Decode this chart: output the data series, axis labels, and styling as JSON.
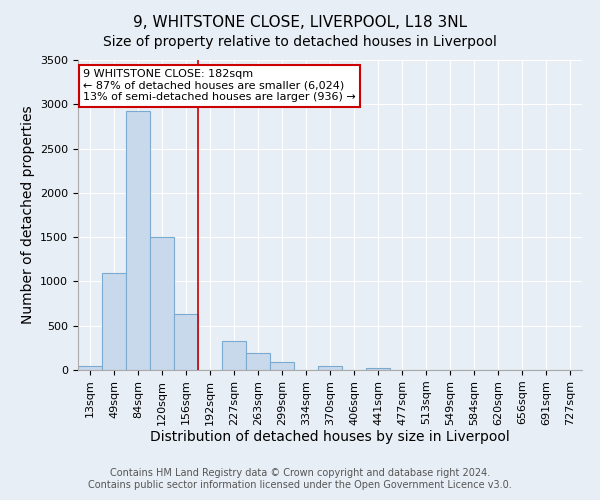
{
  "title": "9, WHITSTONE CLOSE, LIVERPOOL, L18 3NL",
  "subtitle": "Size of property relative to detached houses in Liverpool",
  "xlabel": "Distribution of detached houses by size in Liverpool",
  "ylabel": "Number of detached properties",
  "bar_labels": [
    "13sqm",
    "49sqm",
    "84sqm",
    "120sqm",
    "156sqm",
    "192sqm",
    "227sqm",
    "263sqm",
    "299sqm",
    "334sqm",
    "370sqm",
    "406sqm",
    "441sqm",
    "477sqm",
    "513sqm",
    "549sqm",
    "584sqm",
    "620sqm",
    "656sqm",
    "691sqm",
    "727sqm"
  ],
  "bar_values": [
    40,
    1100,
    2920,
    1500,
    630,
    0,
    330,
    195,
    95,
    0,
    45,
    0,
    18,
    0,
    0,
    0,
    0,
    0,
    0,
    0,
    0
  ],
  "bar_color": "#c8d9ec",
  "bar_edge_color": "#7aaad0",
  "property_line_color": "#cc0000",
  "property_line_index": 5,
  "ylim": [
    0,
    3500
  ],
  "yticks": [
    0,
    500,
    1000,
    1500,
    2000,
    2500,
    3000,
    3500
  ],
  "annotation_title": "9 WHITSTONE CLOSE: 182sqm",
  "annotation_line1": "← 87% of detached houses are smaller (6,024)",
  "annotation_line2": "13% of semi-detached houses are larger (936) →",
  "annotation_box_facecolor": "#ffffff",
  "annotation_box_edgecolor": "#cc0000",
  "footer1": "Contains HM Land Registry data © Crown copyright and database right 2024.",
  "footer2": "Contains public sector information licensed under the Open Government Licence v3.0.",
  "background_color": "#e8eef5",
  "plot_background": "#e8eef5",
  "grid_color": "#ffffff",
  "title_fontsize": 11,
  "axis_label_fontsize": 10,
  "tick_fontsize": 8,
  "annotation_fontsize": 8,
  "footer_fontsize": 7
}
